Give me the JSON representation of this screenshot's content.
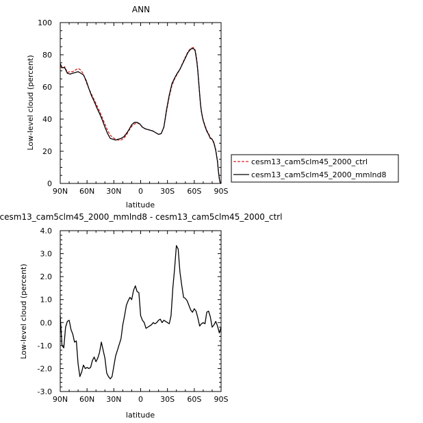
{
  "chart_data": [
    {
      "type": "line",
      "title": "ANN",
      "xlabel": "latitude",
      "ylabel": "Low-level cloud (percent)",
      "xlim": [
        -90,
        90
      ],
      "ylim": [
        0,
        100
      ],
      "x_tick_values": [
        -90,
        -60,
        -30,
        0,
        30,
        60,
        90
      ],
      "x_tick_labels": [
        "90N",
        "60N",
        "30N",
        "0",
        "30S",
        "60S",
        "90S"
      ],
      "y_ticks": [
        0,
        20,
        40,
        60,
        80,
        100
      ],
      "y_tick_labels": [
        "0",
        "20",
        "40",
        "60",
        "80",
        "100"
      ],
      "legend_position": "right",
      "series": [
        {
          "name": "cesm13_cam5clm45_2000_ctrl",
          "color": "#d62020",
          "dash": "dashed",
          "x": [
            -90,
            -88,
            -85,
            -82,
            -79,
            -76,
            -73,
            -70,
            -67,
            -64,
            -61,
            -58,
            -55,
            -52,
            -49,
            -46,
            -43,
            -40,
            -37,
            -34,
            -31,
            -28,
            -25,
            -22,
            -19,
            -16,
            -13,
            -10,
            -7,
            -4,
            -1,
            2,
            5,
            8,
            11,
            14,
            17,
            20,
            23,
            26,
            29,
            32,
            35,
            38,
            41,
            44,
            47,
            50,
            53,
            56,
            59,
            61,
            62,
            63,
            64,
            65,
            66,
            67,
            68,
            69,
            70,
            72,
            74,
            76,
            78,
            80,
            82,
            84,
            86,
            87,
            88,
            89,
            90
          ],
          "y": [
            73,
            71.5,
            72.5,
            69,
            69.5,
            69.5,
            70.5,
            71.5,
            70.5,
            68,
            63,
            59,
            55.5,
            52,
            48.5,
            45,
            41,
            37,
            33,
            30,
            28.5,
            27.5,
            27,
            27,
            28,
            30,
            33,
            35.5,
            37,
            37.5,
            37,
            35,
            34,
            33.5,
            33,
            32.5,
            31.5,
            30.5,
            31,
            35,
            45,
            54,
            61,
            65,
            68,
            71,
            75,
            78.5,
            82,
            84,
            84.5,
            83,
            80,
            76,
            70,
            63,
            56,
            49,
            45,
            42,
            39.5,
            36,
            33,
            31,
            28.5,
            27.5,
            25.5,
            21,
            14,
            8,
            3,
            0.5,
            0
          ]
        },
        {
          "name": "cesm13_cam5clm45_2000_mmlnd8",
          "color": "#000000",
          "dash": "solid",
          "x": [
            -90,
            -88,
            -85,
            -82,
            -79,
            -76,
            -73,
            -70,
            -67,
            -64,
            -61,
            -58,
            -55,
            -52,
            -49,
            -46,
            -43,
            -40,
            -37,
            -34,
            -31,
            -28,
            -25,
            -22,
            -19,
            -16,
            -13,
            -10,
            -7,
            -4,
            -1,
            2,
            5,
            8,
            11,
            14,
            17,
            20,
            23,
            26,
            29,
            32,
            35,
            38,
            41,
            44,
            47,
            50,
            53,
            56,
            59,
            61,
            62,
            63,
            64,
            65,
            66,
            67,
            68,
            69,
            70,
            72,
            74,
            76,
            78,
            80,
            82,
            84,
            86,
            87,
            88,
            89,
            90
          ],
          "y": [
            74.5,
            72,
            72,
            68.5,
            68,
            68.5,
            69,
            69.5,
            68.5,
            67.5,
            64,
            59,
            54.5,
            51,
            47,
            43.5,
            39.5,
            35,
            31,
            28,
            27.5,
            27,
            27.5,
            28,
            29,
            31,
            33.5,
            36.5,
            38,
            38,
            37,
            35,
            34,
            33.5,
            33,
            32.5,
            31.5,
            30.5,
            31,
            35,
            46,
            55,
            62,
            65.5,
            68.5,
            71,
            74.5,
            78,
            81.5,
            83.5,
            84,
            82.5,
            79,
            75,
            69.5,
            62.5,
            55.5,
            49,
            44.5,
            41.5,
            39,
            35.5,
            32.5,
            30.5,
            28,
            27.5,
            25,
            20.5,
            13.5,
            7.5,
            3,
            0.5,
            0
          ]
        }
      ]
    },
    {
      "type": "line",
      "title": "cesm13_cam5clm45_2000_mmlnd8 - cesm13_cam5clm45_2000_ctrl",
      "xlabel": "latitude",
      "ylabel": "Low-level cloud (percent)",
      "xlim": [
        -90,
        90
      ],
      "ylim": [
        -3,
        4
      ],
      "x_tick_values": [
        -90,
        -60,
        -30,
        0,
        30,
        60,
        90
      ],
      "x_tick_labels": [
        "90N",
        "60N",
        "30N",
        "0",
        "30S",
        "60S",
        "90S"
      ],
      "y_ticks": [
        -3,
        -2,
        -1,
        0,
        1,
        2,
        3,
        4
      ],
      "y_tick_labels": [
        "-3.0",
        "-2.0",
        "-1.0",
        "0.0",
        "1.0",
        "2.0",
        "3.0",
        "4.0"
      ],
      "series": [
        {
          "color": "#000000",
          "x": [
            -90,
            -88,
            -86,
            -84,
            -82,
            -80,
            -78,
            -76,
            -74,
            -72,
            -70,
            -68,
            -66,
            -64,
            -62,
            -60,
            -58,
            -56,
            -54,
            -52,
            -50,
            -48,
            -46,
            -44,
            -42,
            -40,
            -38,
            -36,
            -34,
            -32,
            -30,
            -28,
            -26,
            -24,
            -22,
            -20,
            -18,
            -16,
            -14,
            -12,
            -10,
            -8,
            -6,
            -4,
            -2,
            0,
            2,
            4,
            6,
            8,
            10,
            12,
            14,
            16,
            18,
            20,
            22,
            24,
            26,
            28,
            30,
            32,
            34,
            36,
            38,
            40,
            42,
            44,
            46,
            48,
            50,
            52,
            54,
            56,
            58,
            60,
            62,
            64,
            66,
            68,
            70,
            72,
            74,
            76,
            78,
            80,
            82,
            84,
            86,
            88,
            90
          ],
          "y": [
            0.3,
            -1.0,
            -1.1,
            -0.2,
            0.05,
            0.1,
            -0.3,
            -0.5,
            -0.85,
            -0.8,
            -1.8,
            -2.35,
            -2.15,
            -1.85,
            -2.0,
            -1.95,
            -2.0,
            -1.95,
            -1.65,
            -1.5,
            -1.7,
            -1.55,
            -1.3,
            -0.85,
            -1.2,
            -1.55,
            -2.2,
            -2.35,
            -2.45,
            -2.35,
            -1.9,
            -1.45,
            -1.2,
            -0.95,
            -0.7,
            -0.1,
            0.3,
            0.75,
            0.95,
            1.1,
            1.0,
            1.4,
            1.6,
            1.35,
            1.3,
            0.3,
            0.1,
            0.0,
            -0.25,
            -0.2,
            -0.15,
            -0.1,
            0.0,
            -0.05,
            0.0,
            0.1,
            0.15,
            0.0,
            0.1,
            0.05,
            0.0,
            -0.05,
            0.3,
            1.5,
            2.35,
            3.35,
            3.2,
            2.2,
            1.6,
            1.1,
            1.05,
            0.95,
            0.75,
            0.55,
            0.45,
            0.6,
            0.5,
            0.2,
            -0.15,
            -0.05,
            0.0,
            -0.05,
            0.45,
            0.5,
            0.25,
            -0.2,
            -0.1,
            0.05,
            -0.15,
            -0.45,
            -0.2
          ]
        }
      ]
    }
  ]
}
